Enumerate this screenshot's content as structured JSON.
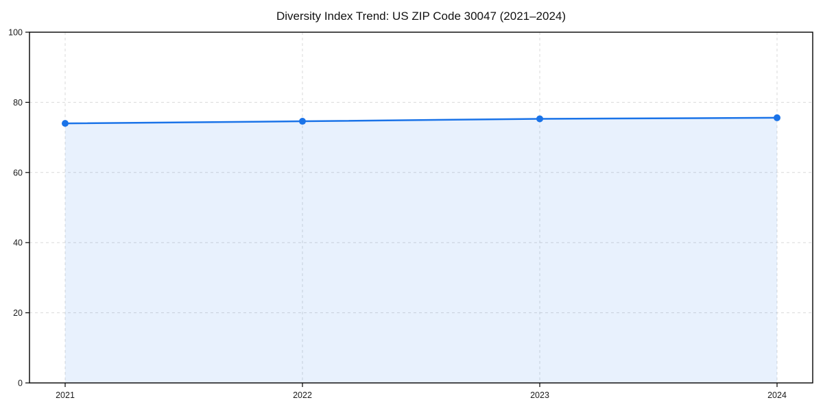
{
  "chart_data": {
    "type": "area",
    "title": "Diversity Index Trend: US ZIP Code 30047 (2021–2024)",
    "xlabel": "",
    "ylabel": "",
    "x": [
      2021,
      2022,
      2023,
      2024
    ],
    "series": [
      {
        "name": "Diversity Index",
        "values": [
          74.0,
          74.6,
          75.3,
          75.6
        ]
      }
    ],
    "xticks": [
      "2021",
      "2022",
      "2023",
      "2024"
    ],
    "yticks": [
      0,
      20,
      40,
      60,
      80,
      100
    ],
    "ylim": [
      0,
      100
    ],
    "grid": true,
    "grid_style": "dashed",
    "legend_position": "none",
    "colors": {
      "line": "#1a73e8",
      "marker": "#1a73e8",
      "fill": "rgba(26,115,232,0.10)",
      "grid": "#d9d9d9",
      "spine": "#000000",
      "title": "#111111",
      "tick_label": "#1a1a1a",
      "background": "#ffffff"
    }
  }
}
